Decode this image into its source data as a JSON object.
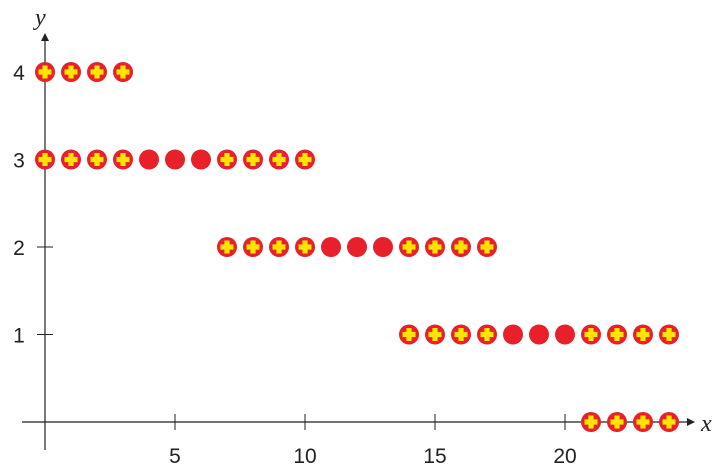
{
  "chart_data": {
    "type": "scatter",
    "title": "",
    "xlabel": "x",
    "ylabel": "y",
    "xlim": [
      0,
      25
    ],
    "ylim": [
      0,
      4.6
    ],
    "x_ticks": [
      5,
      10,
      15,
      20
    ],
    "y_ticks": [
      1,
      2,
      3,
      4
    ],
    "x_tick_labels": [
      "5",
      "10",
      "15",
      "20"
    ],
    "y_tick_labels": [
      "1",
      "2",
      "3",
      "4"
    ],
    "grid": false,
    "marker_colors": {
      "fill": "#e8202a",
      "plus": "#ffe600"
    },
    "series": [
      {
        "marker": "plus-circle",
        "points": [
          [
            0,
            4
          ],
          [
            1,
            4
          ],
          [
            2,
            4
          ],
          [
            3,
            4
          ],
          [
            0,
            3
          ],
          [
            1,
            3
          ],
          [
            2,
            3
          ],
          [
            3,
            3
          ],
          [
            7,
            3
          ],
          [
            8,
            3
          ],
          [
            9,
            3
          ],
          [
            10,
            3
          ],
          [
            7,
            2
          ],
          [
            8,
            2
          ],
          [
            9,
            2
          ],
          [
            10,
            2
          ],
          [
            14,
            2
          ],
          [
            15,
            2
          ],
          [
            16,
            2
          ],
          [
            17,
            2
          ],
          [
            14,
            1
          ],
          [
            15,
            1
          ],
          [
            16,
            1
          ],
          [
            17,
            1
          ],
          [
            21,
            1
          ],
          [
            22,
            1
          ],
          [
            23,
            1
          ],
          [
            24,
            1
          ],
          [
            21,
            0
          ],
          [
            22,
            0
          ],
          [
            23,
            0
          ],
          [
            24,
            0
          ]
        ]
      },
      {
        "marker": "solid-circle",
        "points": [
          [
            4,
            3
          ],
          [
            5,
            3
          ],
          [
            6,
            3
          ],
          [
            11,
            2
          ],
          [
            12,
            2
          ],
          [
            13,
            2
          ],
          [
            18,
            1
          ],
          [
            19,
            1
          ],
          [
            20,
            1
          ]
        ]
      }
    ]
  }
}
